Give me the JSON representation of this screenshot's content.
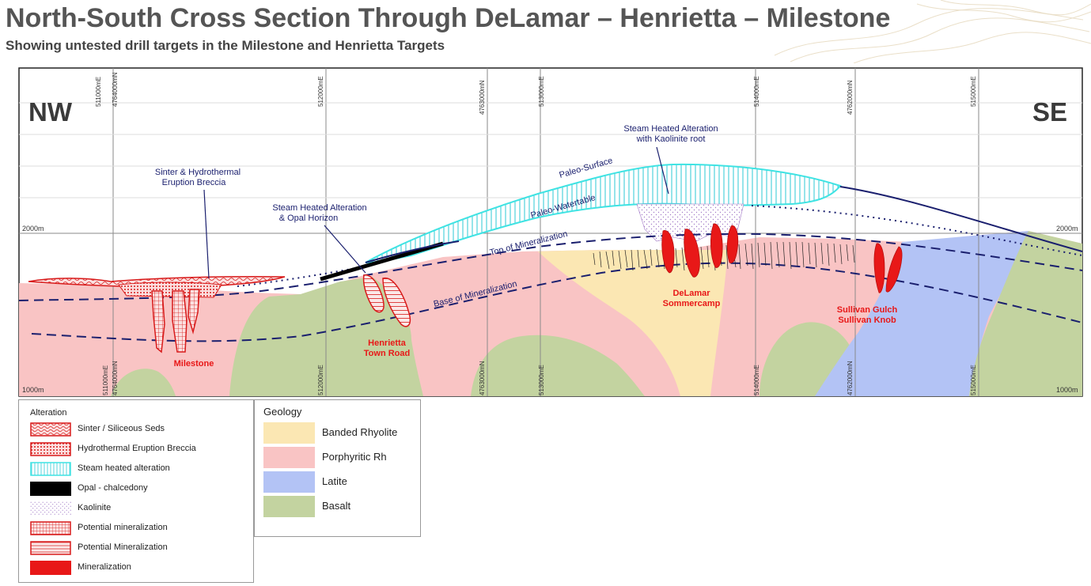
{
  "header": {
    "title": "North-South Cross Section Through DeLamar – Henrietta – Milestone",
    "subtitle": "Showing untested drill targets in the Milestone and Henrietta Targets"
  },
  "section": {
    "left_dir": "NW",
    "right_dir": "SE",
    "elev_2000_left": "2000m",
    "elev_2000_right": "2000m",
    "elev_1000_left": "1000m",
    "elev_1000_right": "1000m",
    "grid_top": [
      "511000mE",
      "4764000mN",
      "512000mE",
      "4763000mN",
      "513000mE",
      "514000mE",
      "4762000mN",
      "515000mE"
    ],
    "grid_bottom": [
      "511000mE",
      "4764000mN",
      "512000mE",
      "4763000mN",
      "513000mE",
      "514000mE",
      "4762000mN",
      "515000mE"
    ],
    "annotations": {
      "sinter": [
        "Sinter & Hydrothermal",
        "Eruption Breccia"
      ],
      "steam_opal": [
        "Steam Heated Alteration",
        "& Opal Horizon"
      ],
      "steam_kaolinite": [
        "Steam Heated Alteration",
        "with Kaolinite root"
      ],
      "paleo_surface": "Paleo-Surface",
      "paleo_watertable": "Paleo-Watertable",
      "top_min": "Top of Mineralization",
      "base_min": "Base of Mineralization"
    },
    "targets": {
      "milestone": "Milestone",
      "henrietta": [
        "Henrietta",
        "Town Road"
      ],
      "delamar": [
        "DeLamar",
        "Sommercamp"
      ],
      "sullivan": [
        "Sullivan Gulch",
        "Sullivan Knob"
      ]
    }
  },
  "legend_alteration": {
    "heading": "Alteration",
    "items": [
      {
        "label": "Sinter / Siliceous Seds",
        "icon": "wavy-red-hatch"
      },
      {
        "label": "Hydrothermal Eruption Breccia",
        "icon": "dotted-red-hatch"
      },
      {
        "label": "Steam heated alteration",
        "icon": "cyan-vertical-hatch"
      },
      {
        "label": "Opal - chalcedony",
        "icon": "solid-black"
      },
      {
        "label": "Kaolinite",
        "icon": "purple-speckle"
      },
      {
        "label": "Potential mineralization",
        "icon": "red-grid-hatch"
      },
      {
        "label": "Potential Mineralization",
        "icon": "red-horizontal-hatch"
      },
      {
        "label": "Mineralization",
        "icon": "solid-red"
      }
    ]
  },
  "legend_geology": {
    "heading": "Geology",
    "items": [
      {
        "label": "Banded Rhyolite",
        "color": "#fbe7b3"
      },
      {
        "label": "Porphyritic Rh",
        "color": "#f9c4c4"
      },
      {
        "label": "Latite",
        "color": "#b3c3f5"
      },
      {
        "label": "Basalt",
        "color": "#c3d3a0"
      }
    ]
  },
  "colors": {
    "rhyolite": "#fbe7b3",
    "porphyritic": "#f9c4c4",
    "latite": "#b3c3f5",
    "basalt": "#c3d3a0",
    "steam": "#3fe3e3",
    "mineral": "#e81818",
    "navy": "#1a1f6e"
  }
}
